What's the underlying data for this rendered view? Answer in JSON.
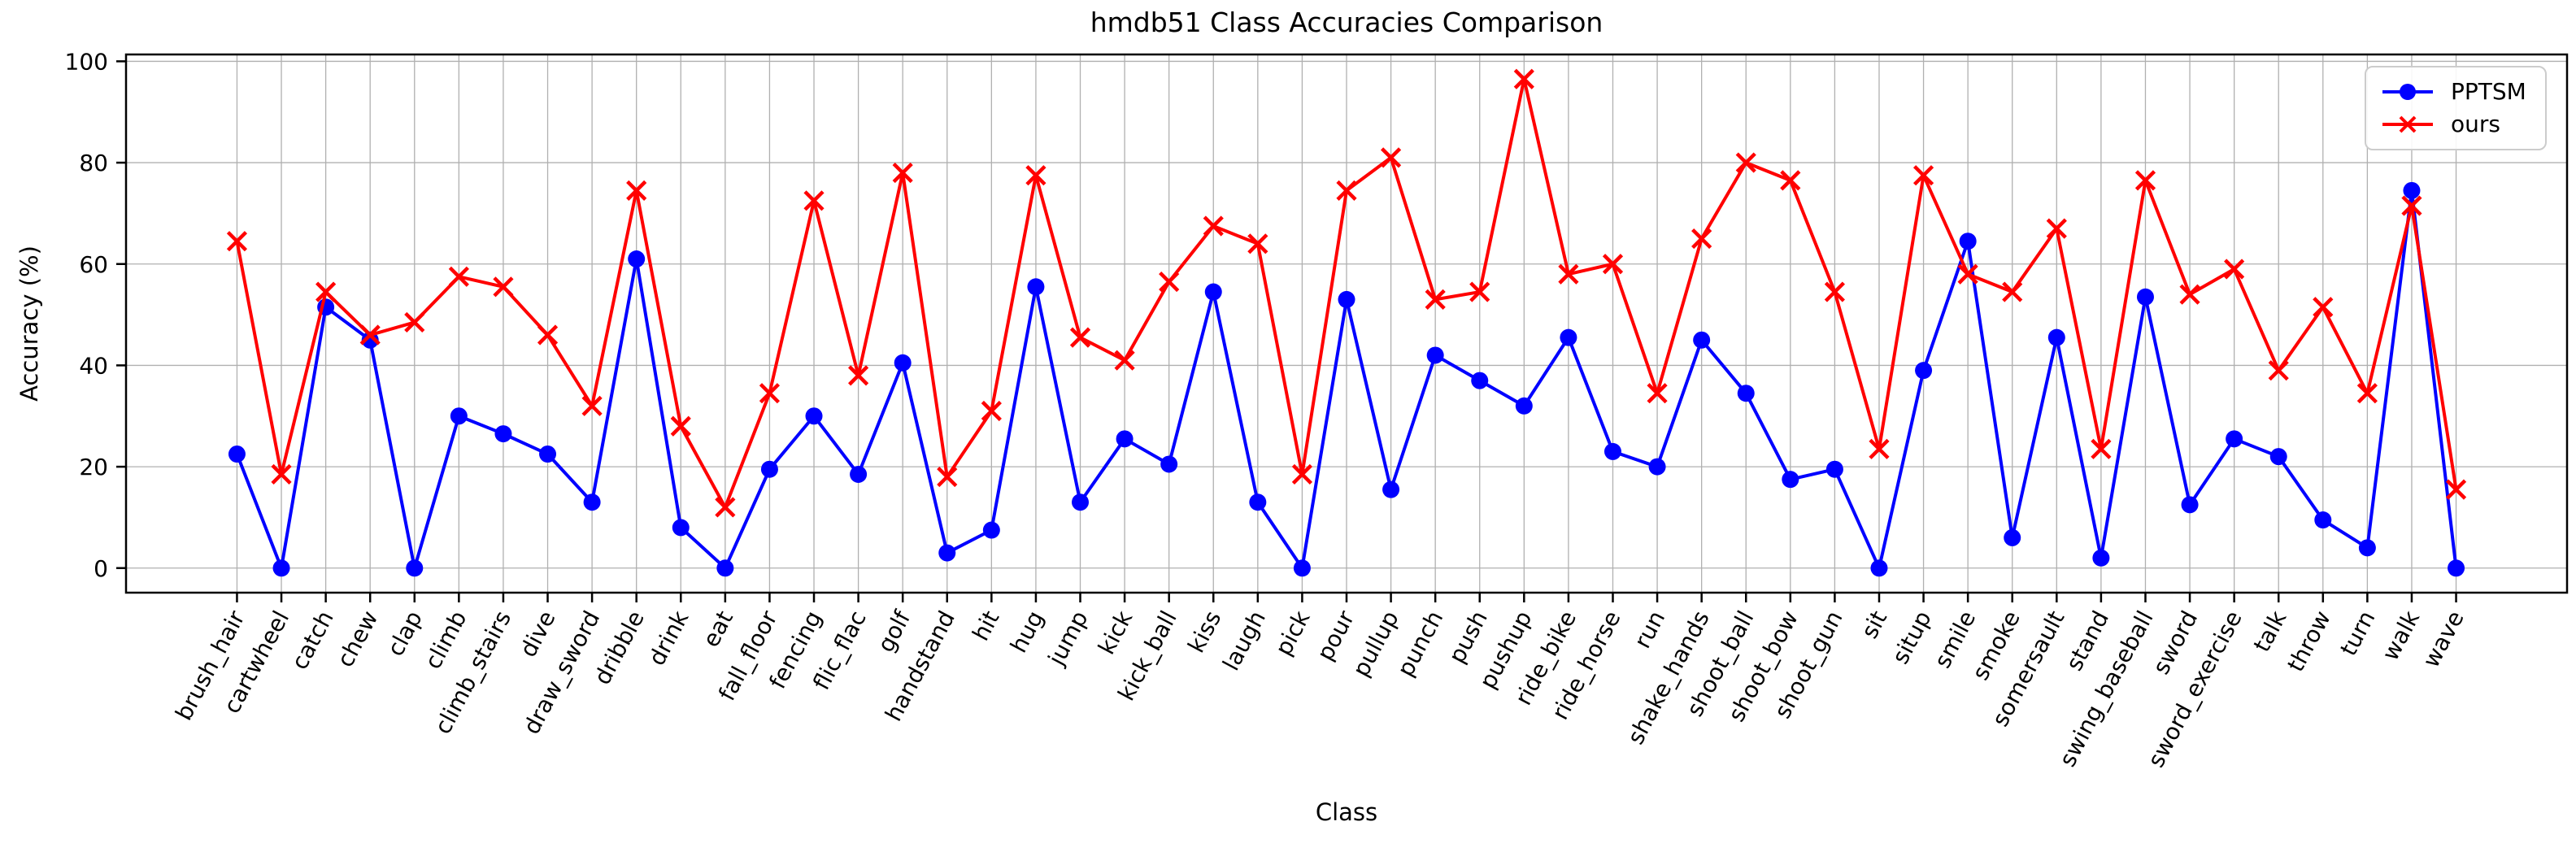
{
  "chart_data": {
    "type": "line",
    "title": "hmdb51 Class Accuracies Comparison",
    "xlabel": "Class",
    "ylabel": "Accuracy (%)",
    "categories": [
      "brush_hair",
      "cartwheel",
      "catch",
      "chew",
      "clap",
      "climb",
      "climb_stairs",
      "dive",
      "draw_sword",
      "dribble",
      "drink",
      "eat",
      "fall_floor",
      "fencing",
      "flic_flac",
      "golf",
      "handstand",
      "hit",
      "hug",
      "jump",
      "kick",
      "kick_ball",
      "kiss",
      "laugh",
      "pick",
      "pour",
      "pullup",
      "punch",
      "push",
      "pushup",
      "ride_bike",
      "ride_horse",
      "run",
      "shake_hands",
      "shoot_ball",
      "shoot_bow",
      "shoot_gun",
      "sit",
      "situp",
      "smile",
      "smoke",
      "somersault",
      "stand",
      "swing_baseball",
      "sword",
      "sword_exercise",
      "talk",
      "throw",
      "turn",
      "walk",
      "wave"
    ],
    "series": [
      {
        "name": "PPTSM",
        "color": "#0000ff",
        "marker": "circle",
        "values": [
          22.5,
          0,
          51.5,
          45,
          0,
          30,
          26.5,
          22.5,
          13,
          61,
          8,
          0,
          19.5,
          30,
          18.5,
          40.5,
          3,
          7.5,
          55.5,
          13,
          25.5,
          20.5,
          54.5,
          13,
          0,
          53,
          15.5,
          42,
          37,
          32,
          45.5,
          23,
          20,
          45,
          34.5,
          17.5,
          19.5,
          0,
          39,
          64.5,
          6,
          45.5,
          2,
          53.5,
          12.5,
          25.5,
          22,
          9.5,
          4,
          74.5,
          0
        ]
      },
      {
        "name": "ours",
        "color": "#ff0000",
        "marker": "x",
        "values": [
          64.5,
          18.5,
          54.5,
          46,
          48.5,
          57.5,
          55.5,
          46,
          32,
          74.5,
          28,
          12,
          34.5,
          72.5,
          38,
          78,
          18,
          31,
          77.5,
          45.5,
          41,
          56.5,
          67.5,
          64,
          18.5,
          74.5,
          81,
          53,
          54.5,
          96.5,
          58,
          60,
          34.5,
          65,
          80,
          76.5,
          54.5,
          23.5,
          77.5,
          58,
          54.5,
          67,
          23.5,
          76.5,
          54,
          59,
          39,
          51.5,
          34.5,
          71.5,
          15.5
        ]
      }
    ],
    "yticks": [
      0,
      20,
      40,
      60,
      80,
      100
    ],
    "ytick_labels": [
      "0",
      "20",
      "40",
      "60",
      "80",
      "100"
    ],
    "ylim": [
      0,
      100
    ],
    "grid": true,
    "grid_color": "#b0b0b0",
    "background_color": "#ffffff",
    "legend_position": "upper right",
    "x_tick_rotation_deg": 62
  }
}
